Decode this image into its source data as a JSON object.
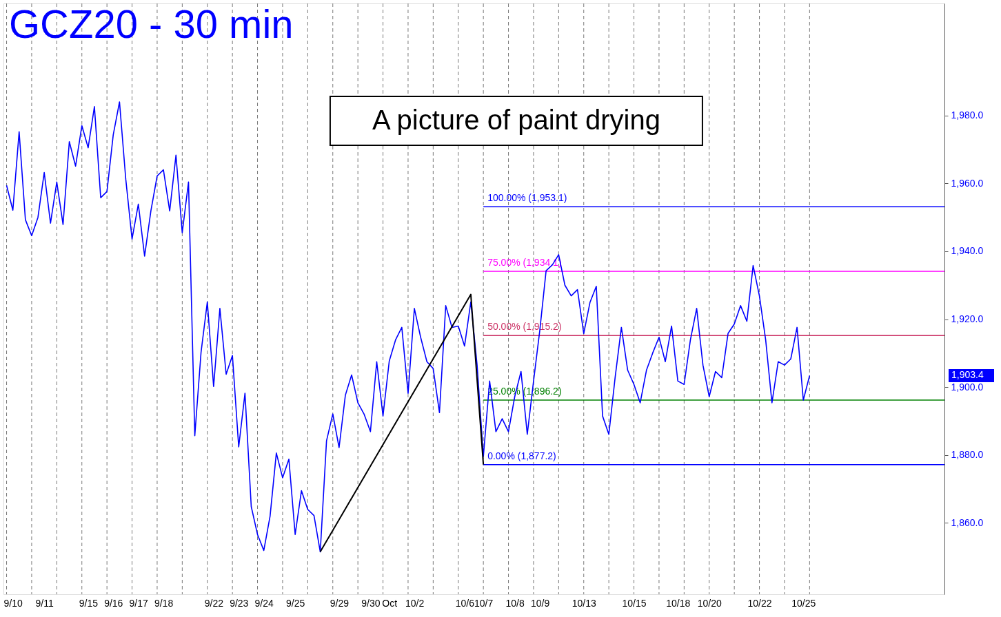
{
  "chart_data": {
    "type": "line",
    "title": "GCZ20 - 30 min",
    "annotations": [
      "A picture of paint drying",
      "1,903.4"
    ],
    "categories": [
      null,
      "9/10",
      null,
      null,
      null,
      null,
      "9/11",
      null,
      null,
      null,
      null,
      null,
      null,
      "9/15",
      null,
      null,
      null,
      "9/16",
      null,
      null,
      null,
      "9/17",
      null,
      null,
      null,
      "9/18",
      null,
      null,
      null,
      null,
      null,
      null,
      null,
      "9/22",
      null,
      null,
      null,
      "9/23",
      null,
      null,
      null,
      "9/24",
      null,
      null,
      null,
      null,
      "9/25",
      null,
      null,
      null,
      null,
      null,
      null,
      "9/29",
      null,
      null,
      null,
      null,
      "9/30",
      null,
      null,
      "Oct",
      null,
      null,
      null,
      "10/2",
      null,
      null,
      null,
      null,
      null,
      null,
      null,
      "10/6",
      null,
      null,
      "10/7",
      null,
      null,
      null,
      null,
      "10/8",
      null,
      null,
      null,
      "10/9",
      null,
      null,
      null,
      null,
      null,
      null,
      "10/13",
      null,
      null,
      null,
      null,
      null,
      null,
      null,
      "10/15",
      null,
      null,
      null,
      null,
      null,
      null,
      "10/18",
      null,
      null,
      null,
      null,
      "10/20",
      null,
      null,
      null,
      null,
      null,
      null,
      null,
      "10/22",
      null,
      null,
      null,
      null,
      null,
      null,
      "10/25",
      null,
      null,
      null,
      null,
      null,
      null,
      null,
      null,
      null,
      null,
      null,
      null,
      null,
      null,
      null,
      null,
      null,
      null,
      null,
      null,
      null,
      null
    ],
    "ylim": [
      1839,
      2013
    ],
    "yticks": [
      {
        "value": 1860,
        "label": "1,860.0"
      },
      {
        "value": 1880,
        "label": "1,880.0"
      },
      {
        "value": 1900,
        "label": "1,900.0"
      },
      {
        "value": 1920,
        "label": "1,920.0"
      },
      {
        "value": 1940,
        "label": "1,940.0"
      },
      {
        "value": 1960,
        "label": "1,960.0"
      },
      {
        "value": 1980,
        "label": "1,980.0"
      }
    ],
    "grid": "x",
    "series": [
      {
        "color": "#0000ff",
        "values": [
          1959.4,
          1952.1,
          1975.2,
          1949.3,
          1944.6,
          1950.0,
          1963.2,
          1948.3,
          1960.4,
          1947.9,
          1972.3,
          1965.1,
          1977.0,
          1970.5,
          1982.6,
          1955.8,
          1957.6,
          1974.3,
          1984.0,
          1961.2,
          1943.6,
          1953.9,
          1938.6,
          1951.9,
          1962.2,
          1964.0,
          1951.9,
          1968.3,
          1945.5,
          1960.4,
          1885.7,
          1910.3,
          1925.1,
          1900.2,
          1923.2,
          1903.8,
          1909.3,
          1882.4,
          1898.2,
          1864.8,
          1856.6,
          1851.9,
          1862.0,
          1880.6,
          1873.3,
          1878.8,
          1856.6,
          1869.5,
          1864.0,
          1862.2,
          1851.5,
          1884.2,
          1892.1,
          1882.2,
          1897.6,
          1903.6,
          1895.4,
          1892.0,
          1886.9,
          1907.5,
          1891.5,
          1907.7,
          1913.9,
          1917.6,
          1898.2,
          1923.2,
          1914.7,
          1907.5,
          1905.5,
          1892.5,
          1924.0,
          1917.6,
          1918.0,
          1912.1,
          1925.1,
          1906.5,
          1879.6,
          1901.8,
          1886.9,
          1890.7,
          1886.9,
          1897.2,
          1904.6,
          1886.1,
          1901.8,
          1916.8,
          1934.3,
          1936.0,
          1939.0,
          1930.0,
          1926.9,
          1928.7,
          1915.8,
          1925.0,
          1929.7,
          1891.5,
          1886.1,
          1902.8,
          1917.6,
          1905.0,
          1900.8,
          1895.4,
          1905.0,
          1910.1,
          1914.7,
          1907.5,
          1918.0,
          1901.8,
          1900.8,
          1913.9,
          1923.2,
          1906.5,
          1897.2,
          1904.6,
          1902.8,
          1915.8,
          1918.6,
          1924.0,
          1919.4,
          1935.8,
          1926.9,
          1913.9,
          1895.4,
          1907.5,
          1906.5,
          1908.3,
          1917.6,
          1896.2,
          1903.4,
          null,
          null,
          null,
          null,
          null,
          null,
          null,
          null,
          null,
          null,
          null,
          null,
          null,
          null,
          null,
          null,
          null,
          null,
          null,
          null,
          null
        ]
      },
      {
        "type": "line",
        "color": "#000000",
        "values": [
          null,
          null,
          null,
          null,
          null,
          null,
          null,
          null,
          null,
          null,
          null,
          null,
          null,
          null,
          null,
          null,
          null,
          null,
          null,
          null,
          null,
          null,
          null,
          null,
          null,
          null,
          null,
          null,
          null,
          null,
          null,
          null,
          null,
          null,
          null,
          null,
          null,
          null,
          null,
          null,
          null,
          null,
          null,
          null,
          null,
          null,
          null,
          null,
          null,
          null,
          1851.5,
          null,
          null,
          null,
          null,
          null,
          null,
          null,
          null,
          null,
          null,
          null,
          null,
          null,
          null,
          null,
          null,
          null,
          null,
          null,
          null,
          null,
          null,
          null,
          1927.3,
          null,
          1877.2,
          null,
          null,
          null,
          null,
          null,
          null,
          null,
          null,
          null,
          null,
          null,
          null,
          null,
          null,
          null,
          null,
          null,
          null,
          null,
          null,
          null,
          null,
          null,
          null,
          null,
          null,
          null,
          null,
          null,
          null,
          null,
          null,
          null,
          null,
          null,
          null,
          null,
          null,
          null,
          null,
          null,
          null,
          null,
          null,
          null,
          null,
          null,
          null,
          null,
          null,
          null,
          null,
          null,
          null,
          null,
          null,
          null,
          null,
          null,
          null,
          null,
          null,
          null,
          null,
          null,
          null,
          null,
          null,
          null,
          null,
          null,
          null,
          null
        ]
      }
    ],
    "ref_lines": [
      {
        "axis": "y",
        "value": 1953.1,
        "label": "100.00% (1,953.1)",
        "color": "#0000ff"
      },
      {
        "axis": "y",
        "value": 1934.1,
        "label": "75.00% (1,934.1)",
        "color": "#ff00ff"
      },
      {
        "axis": "y",
        "value": 1915.2,
        "label": "50.00% (1,915.2)",
        "color": "#cc3366"
      },
      {
        "axis": "y",
        "value": 1896.2,
        "label": "25.00% (1,896.2)",
        "color": "#008000"
      },
      {
        "axis": "y",
        "value": 1877.2,
        "label": "0.00% (1,877.2)",
        "color": "#0000ff"
      }
    ]
  }
}
